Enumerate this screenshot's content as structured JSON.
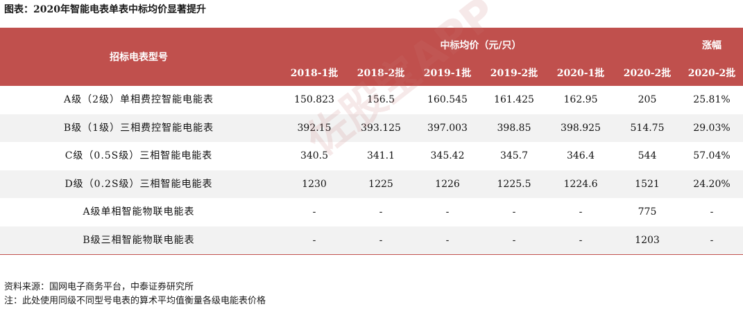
{
  "title": "图表：2020年智能电表单表中标均价显著提升",
  "header": {
    "model_label": "招标电表型号",
    "price_group_label": "中标均价（元/只）",
    "growth_group_label": "涨幅",
    "columns": [
      "2018-1批",
      "2018-2批",
      "2019-1批",
      "2019-2批",
      "2020-1批",
      "2020-2批",
      "2020-2批"
    ]
  },
  "rows": [
    {
      "name": "A级（2级）单相费控智能电能表",
      "values": [
        "150.823",
        "156.5",
        "160.545",
        "161.425",
        "162.95",
        "205",
        "25.81%"
      ]
    },
    {
      "name": "B级（1级）三相费控智能电能表",
      "values": [
        "392.15",
        "393.125",
        "397.003",
        "398.85",
        "398.925",
        "514.75",
        "29.03%"
      ]
    },
    {
      "name": "C级（0.5S级）三相智能电能表",
      "values": [
        "340.5",
        "341.1",
        "345.42",
        "345.7",
        "346.4",
        "544",
        "57.04%"
      ]
    },
    {
      "name": "D级（0.2S级）三相智能电能表",
      "values": [
        "1230",
        "1225",
        "1226",
        "1225.5",
        "1224.6",
        "1521",
        "24.20%"
      ]
    },
    {
      "name": "A级单相智能物联电能表",
      "values": [
        "-",
        "-",
        "-",
        "-",
        "-",
        "775",
        "-"
      ]
    },
    {
      "name": "B级三相智能物联电能表",
      "values": [
        "-",
        "-",
        "-",
        "-",
        "-",
        "1203",
        "-"
      ]
    }
  ],
  "watermark": "佐股宝APP",
  "footnotes": {
    "source": "资料来源：国网电子商务平台，中泰证券研究所",
    "note": "注：此处使用同级不同型号电表的算术平均值衡量各级电能表价格"
  },
  "colors": {
    "header_bg": "#c0504d",
    "header_text": "#ffffff",
    "row_shade": "#f2f2f2"
  }
}
